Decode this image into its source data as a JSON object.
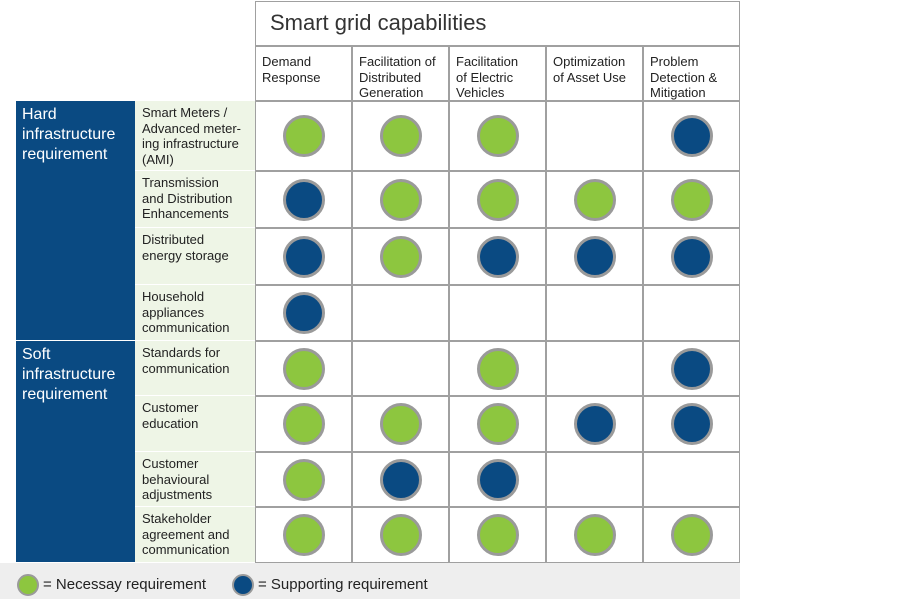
{
  "title": "Smart grid capabilities",
  "columns": [
    "Demand\nResponse",
    "Facilitation of\nDistributed\nGeneration",
    "Facilitation\nof Electric\nVehicles",
    "Optimization\nof Asset Use",
    "Problem\nDetection &\nMitigation"
  ],
  "groups": [
    {
      "label": "Hard\ninfrastructure\nrequirement"
    },
    {
      "label": "Soft\ninfrastructure\nrequirement"
    }
  ],
  "rows": [
    {
      "label": "Smart Meters /\nAdvanced meter-\ning infrastructure\n(AMI)",
      "cells": [
        "necessary",
        "necessary",
        "necessary",
        "",
        "supporting"
      ]
    },
    {
      "label": "Transmission\nand Distribution\nEnhancements",
      "cells": [
        "supporting",
        "necessary",
        "necessary",
        "necessary",
        "necessary"
      ]
    },
    {
      "label": "Distributed\nenergy storage",
      "cells": [
        "supporting",
        "necessary",
        "supporting",
        "supporting",
        "supporting"
      ]
    },
    {
      "label": "Household\nappliances\ncommunication",
      "cells": [
        "supporting",
        "",
        "",
        "",
        ""
      ]
    },
    {
      "label": "Standards for\ncommunication",
      "cells": [
        "necessary",
        "",
        "necessary",
        "",
        "supporting"
      ]
    },
    {
      "label": "Customer\neducation",
      "cells": [
        "necessary",
        "necessary",
        "necessary",
        "supporting",
        "supporting"
      ]
    },
    {
      "label": "Customer\nbehavioural\nadjustments",
      "cells": [
        "necessary",
        "supporting",
        "supporting",
        "",
        ""
      ]
    },
    {
      "label": "Stakeholder\nagreement and\ncommunication",
      "cells": [
        "necessary",
        "necessary",
        "necessary",
        "necessary",
        "necessary"
      ]
    }
  ],
  "legend": {
    "necessary_label": "= Necessay requirement",
    "supporting_label": "= Supporting requirement"
  },
  "colors": {
    "necessary": "#8dc63f",
    "supporting": "#0a4a82",
    "group_bg": "#0a4a82",
    "rowhead_bg": "#eef5e6",
    "grid_line": "#a0a0a0",
    "legend_bg": "#eeeeee"
  }
}
